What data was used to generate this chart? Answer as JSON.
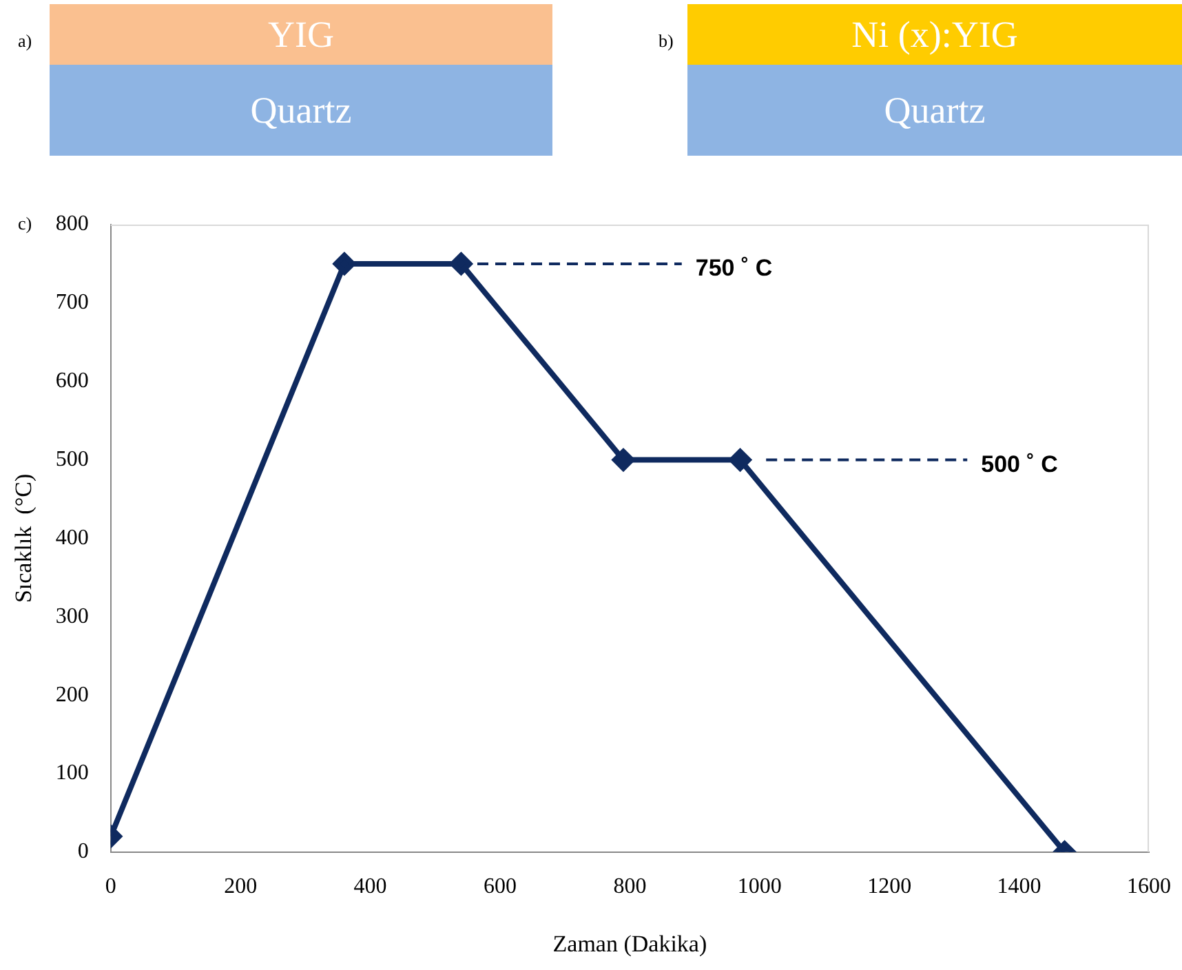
{
  "chart_data": [
    {
      "type": "other",
      "annotations": [
        "a)",
        "YIG",
        "Quartz"
      ],
      "colors": [
        "#fac090",
        "#8eb4e3"
      ]
    },
    {
      "type": "other",
      "annotations": [
        "b)",
        "Ni (x):YIG",
        "Quartz"
      ],
      "colors": [
        "#ffcc00",
        "#8eb4e3"
      ]
    },
    {
      "type": "line",
      "xlabel": "Zaman (Dakika)",
      "ylabel": "Sıcaklık  (°C)",
      "xlim": [
        0,
        1600
      ],
      "xticks": [
        0,
        200,
        400,
        600,
        800,
        1000,
        1200,
        1400,
        1600
      ],
      "ylim": [
        0,
        800
      ],
      "yticks": [
        0,
        100,
        200,
        300,
        400,
        500,
        600,
        700,
        800
      ],
      "grid": false,
      "legend": false,
      "series": [
        {
          "color": "#0f2a5f",
          "marker": "diamond",
          "line_style": "solid",
          "x": [
            0,
            360,
            540,
            790,
            970,
            1470
          ],
          "values": [
            20,
            750,
            750,
            500,
            500,
            0
          ]
        },
        {
          "color": "#0f2a5f",
          "marker": "none",
          "line_style": "dashed",
          "x": [
            565,
            880
          ],
          "values": [
            750,
            750
          ]
        },
        {
          "color": "#0f2a5f",
          "marker": "none",
          "line_style": "dashed",
          "x": [
            1010,
            1320
          ],
          "values": [
            500,
            500
          ]
        }
      ],
      "annotations": [
        "c)",
        {
          "text": "750 ˚ C",
          "x": 880,
          "y": 750
        },
        {
          "text": "500 ˚ C",
          "x": 1320,
          "y": 500
        }
      ]
    }
  ]
}
